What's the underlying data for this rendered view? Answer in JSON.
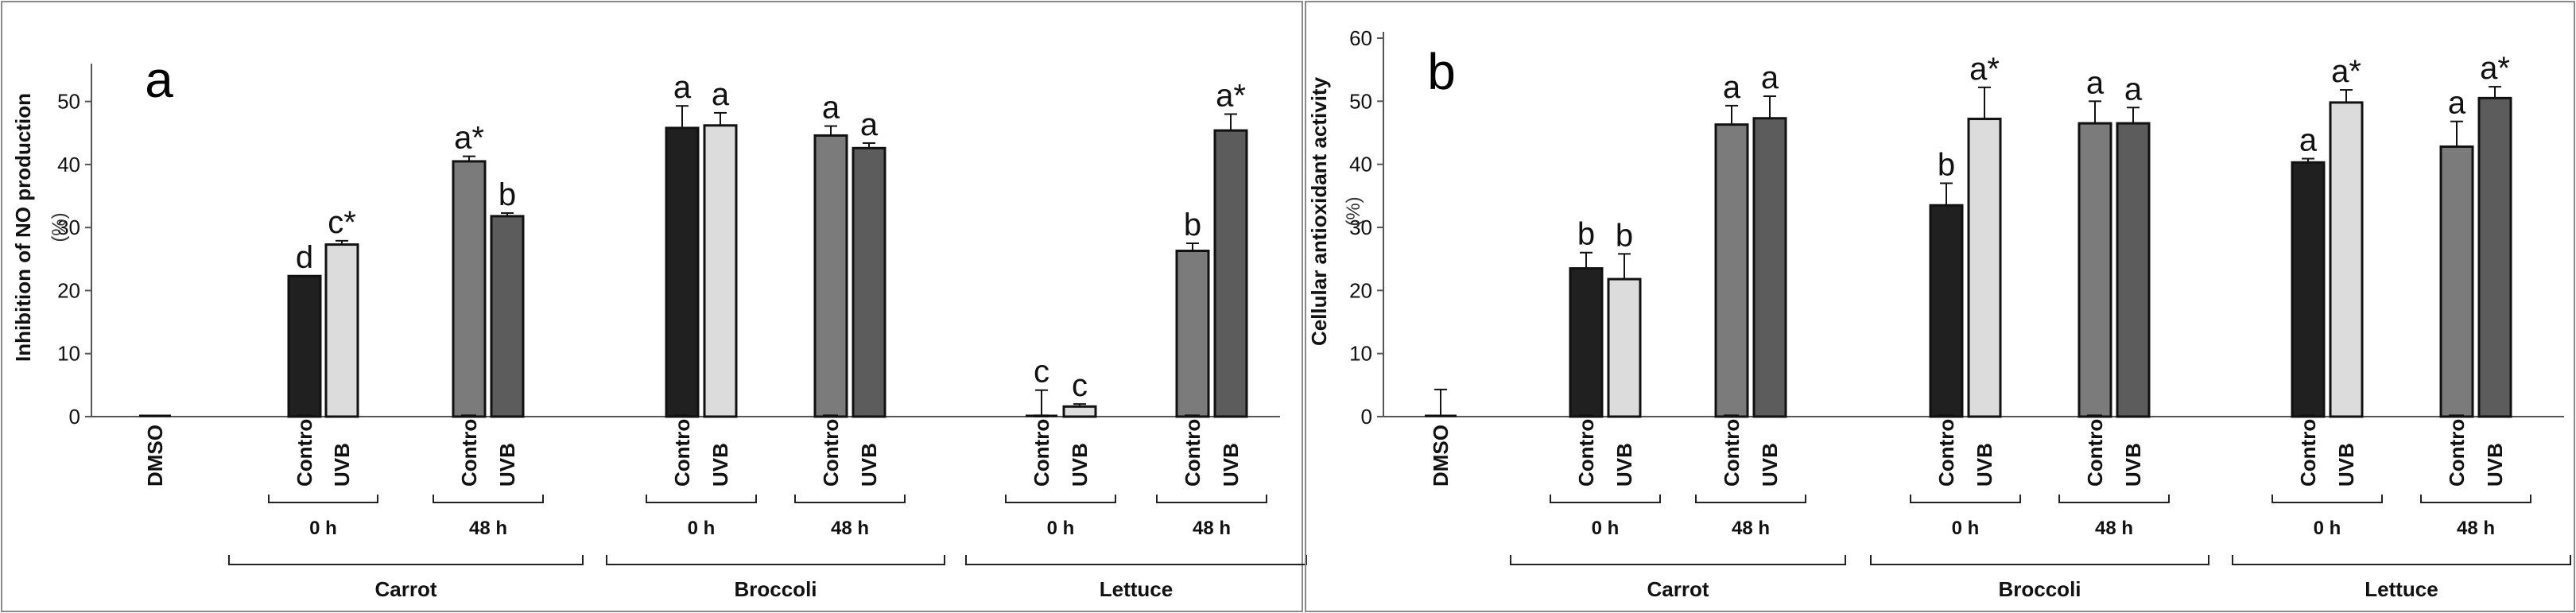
{
  "chart_data": [
    {
      "type": "bar",
      "panel": "a",
      "ylabel": "Inhibition of NO production",
      "yunit": "(%)",
      "ylim": [
        0,
        55
      ],
      "yticks": [
        0,
        10,
        20,
        30,
        40,
        50
      ],
      "bars": [
        {
          "label": "DMSO",
          "value": 0,
          "err": 0,
          "letter": "",
          "shade": "dark"
        },
        {
          "label": "Control",
          "value": 22.3,
          "err": 0,
          "letter": "d",
          "shade": "dark"
        },
        {
          "label": "UVB",
          "value": 27.3,
          "err": 0.6,
          "letter": "c*",
          "shade": "light"
        },
        {
          "label": "Control",
          "value": 40.5,
          "err": 0.8,
          "letter": "a*",
          "shade": "mid"
        },
        {
          "label": "UVB",
          "value": 31.8,
          "err": 0.5,
          "letter": "b",
          "shade": "dim"
        },
        {
          "label": "Control",
          "value": 45.8,
          "err": 3.5,
          "letter": "a",
          "shade": "dark"
        },
        {
          "label": "UVB",
          "value": 46.2,
          "err": 2.0,
          "letter": "a",
          "shade": "light"
        },
        {
          "label": "Control",
          "value": 44.6,
          "err": 1.5,
          "letter": "a",
          "shade": "mid"
        },
        {
          "label": "UVB",
          "value": 42.6,
          "err": 0.8,
          "letter": "a",
          "shade": "dim"
        },
        {
          "label": "Control",
          "value": 0,
          "err": 4.2,
          "letter": "c",
          "shade": "dark"
        },
        {
          "label": "UVB",
          "value": 1.6,
          "err": 0.4,
          "letter": "c",
          "shade": "light"
        },
        {
          "label": "Control",
          "value": 26.3,
          "err": 1.2,
          "letter": "b",
          "shade": "mid"
        },
        {
          "label": "UVB",
          "value": 45.4,
          "err": 2.6,
          "letter": "a*",
          "shade": "dim"
        }
      ],
      "times": [
        "0 h",
        "48 h",
        "0 h",
        "48 h",
        "0 h",
        "48 h"
      ],
      "groups": [
        "Carrot",
        "Broccoli",
        "Lettuce"
      ]
    },
    {
      "type": "bar",
      "panel": "b",
      "ylabel": "Cellular antioxidant activity",
      "yunit": "(%)",
      "ylim": [
        0,
        60
      ],
      "yticks": [
        0,
        10,
        20,
        30,
        40,
        50,
        60
      ],
      "bars": [
        {
          "label": "DMSO",
          "value": 0,
          "err": 4.3,
          "letter": "",
          "shade": "dark"
        },
        {
          "label": "Control",
          "value": 23.5,
          "err": 2.5,
          "letter": "b",
          "shade": "dark"
        },
        {
          "label": "UVB",
          "value": 21.8,
          "err": 4.0,
          "letter": "b",
          "shade": "light"
        },
        {
          "label": "Control",
          "value": 46.3,
          "err": 3.0,
          "letter": "a",
          "shade": "mid"
        },
        {
          "label": "UVB",
          "value": 47.3,
          "err": 3.5,
          "letter": "a",
          "shade": "dim"
        },
        {
          "label": "Control",
          "value": 33.5,
          "err": 3.5,
          "letter": "b",
          "shade": "dark"
        },
        {
          "label": "UVB",
          "value": 47.2,
          "err": 5.0,
          "letter": "a*",
          "shade": "light"
        },
        {
          "label": "Control",
          "value": 46.5,
          "err": 3.5,
          "letter": "a",
          "shade": "mid"
        },
        {
          "label": "UVB",
          "value": 46.5,
          "err": 2.5,
          "letter": "a",
          "shade": "dim"
        },
        {
          "label": "Control",
          "value": 40.3,
          "err": 0.6,
          "letter": "a",
          "shade": "dark"
        },
        {
          "label": "UVB",
          "value": 49.8,
          "err": 2.0,
          "letter": "a*",
          "shade": "light"
        },
        {
          "label": "Control",
          "value": 42.8,
          "err": 4.0,
          "letter": "a",
          "shade": "mid"
        },
        {
          "label": "UVB",
          "value": 50.5,
          "err": 1.8,
          "letter": "a*",
          "shade": "dim"
        }
      ],
      "times": [
        "0 h",
        "48 h",
        "0 h",
        "48 h",
        "0 h",
        "48 h"
      ],
      "groups": [
        "Carrot",
        "Broccoli",
        "Lettuce"
      ]
    }
  ],
  "colors": {
    "dark": "#202020",
    "light": "#dcdcdc",
    "mid": "#7b7b7b",
    "dim": "#5c5c5c",
    "frame": "#8a8a8a",
    "axis": "#555555"
  }
}
